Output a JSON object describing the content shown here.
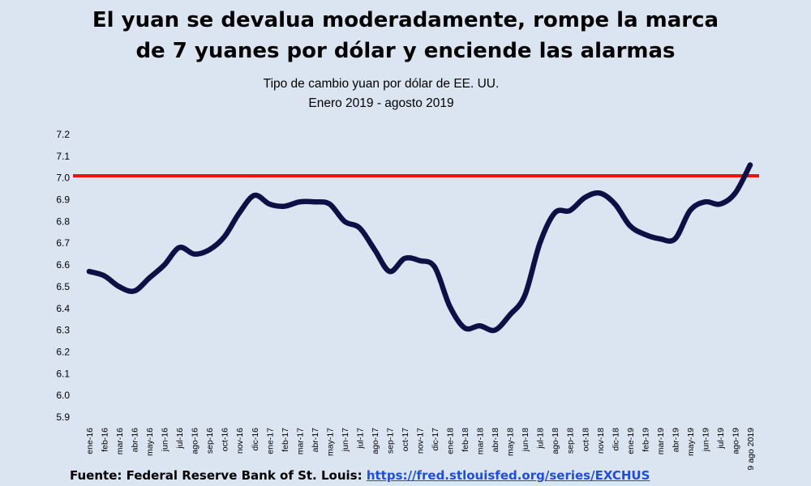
{
  "colors": {
    "background": "#dbe4f1",
    "line": "#0b1045",
    "threshold": "#ee1111",
    "link": "#1f4fd6"
  },
  "header": {
    "title_line1": "El yuan se devalua moderadamente, rompe la marca",
    "title_line2": "de 7 yuanes por dólar y enciende las alarmas",
    "subtitle_line1": "Tipo de cambio yuan por dólar de EE. UU.",
    "subtitle_line2": "Enero 2019 - agosto 2019"
  },
  "footer": {
    "source_label": "Fuente: Federal Reserve Bank of St. Louis:",
    "source_link": "https://fred.stlouisfed.org/series/EXCHUS"
  },
  "chart_data": {
    "type": "line",
    "categories": [
      "ene-16",
      "feb-16",
      "mar-16",
      "abr-16",
      "may-16",
      "jun-16",
      "jul-16",
      "ago-16",
      "sep-16",
      "oct-16",
      "nov-16",
      "dic-16",
      "ene-17",
      "feb-17",
      "mar-17",
      "abr-17",
      "may-17",
      "jun-17",
      "jul-17",
      "ago-17",
      "sep-17",
      "oct-17",
      "nov-17",
      "dic-17",
      "ene-18",
      "feb-18",
      "mar-18",
      "abr-18",
      "may-18",
      "jun-18",
      "jul-18",
      "ago-18",
      "sep-18",
      "oct-18",
      "nov-18",
      "dic-18",
      "ene-19",
      "feb-19",
      "mar-19",
      "abr-19",
      "may-19",
      "jun-19",
      "jul-19",
      "ago-19",
      "9 ago 2019"
    ],
    "values": [
      6.57,
      6.55,
      6.5,
      6.48,
      6.54,
      6.6,
      6.68,
      6.65,
      6.67,
      6.73,
      6.84,
      6.92,
      6.88,
      6.87,
      6.89,
      6.89,
      6.88,
      6.8,
      6.77,
      6.67,
      6.57,
      6.63,
      6.62,
      6.59,
      6.41,
      6.31,
      6.32,
      6.3,
      6.37,
      6.46,
      6.7,
      6.84,
      6.85,
      6.91,
      6.93,
      6.88,
      6.78,
      6.74,
      6.72,
      6.72,
      6.85,
      6.89,
      6.88,
      6.93,
      7.06
    ],
    "reference_line": 7.01,
    "ylim": [
      5.9,
      7.2
    ],
    "yticks": [
      "5.9",
      "6.0",
      "6.1",
      "6.2",
      "6.3",
      "6.4",
      "6.5",
      "6.6",
      "6.7",
      "6.8",
      "6.9",
      "7.0",
      "7.1",
      "7.2"
    ],
    "grid": false
  }
}
